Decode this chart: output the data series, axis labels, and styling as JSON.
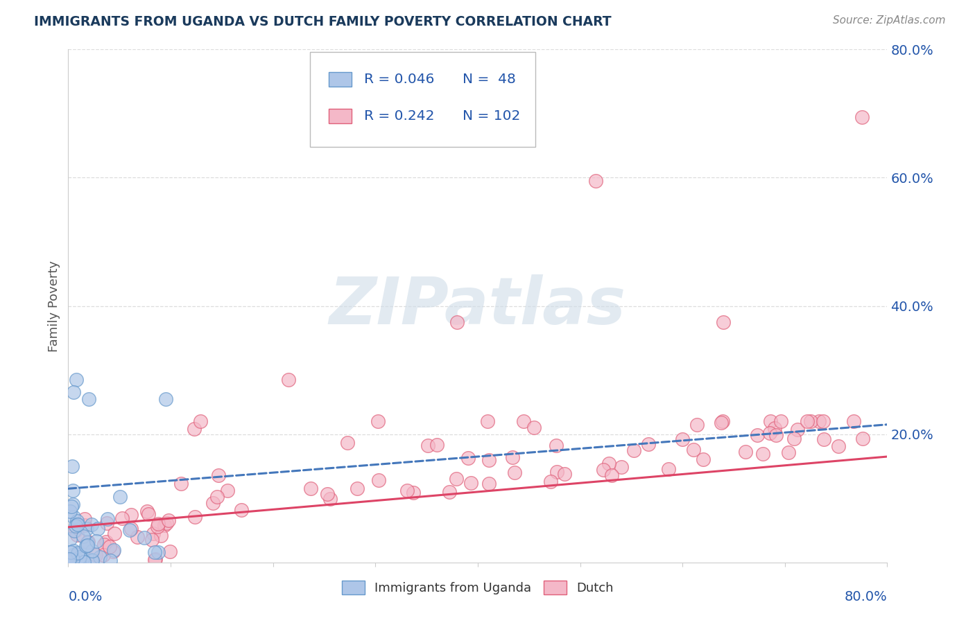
{
  "title": "IMMIGRANTS FROM UGANDA VS DUTCH FAMILY POVERTY CORRELATION CHART",
  "source": "Source: ZipAtlas.com",
  "ylabel": "Family Poverty",
  "legend_uganda": "Immigrants from Uganda",
  "legend_dutch": "Dutch",
  "R_uganda": 0.046,
  "N_uganda": 48,
  "R_dutch": 0.242,
  "N_dutch": 102,
  "color_uganda_face": "#aec6e8",
  "color_uganda_edge": "#6699cc",
  "color_dutch_face": "#f4b8c8",
  "color_dutch_edge": "#e0607a",
  "color_uganda_line": "#4477bb",
  "color_dutch_line": "#dd4466",
  "title_color": "#1a3a5c",
  "source_color": "#888888",
  "legend_R_color": "#2255aa",
  "background_color": "#ffffff",
  "grid_color": "#dddddd",
  "watermark_color": "#d0dde8",
  "watermark": "ZIPatlas",
  "xlim": [
    0.0,
    0.8
  ],
  "ylim": [
    0.0,
    0.8
  ],
  "yticks": [
    0.2,
    0.4,
    0.6,
    0.8
  ],
  "ytick_labels": [
    "20.0%",
    "40.0%",
    "60.0%",
    "80.0%"
  ]
}
